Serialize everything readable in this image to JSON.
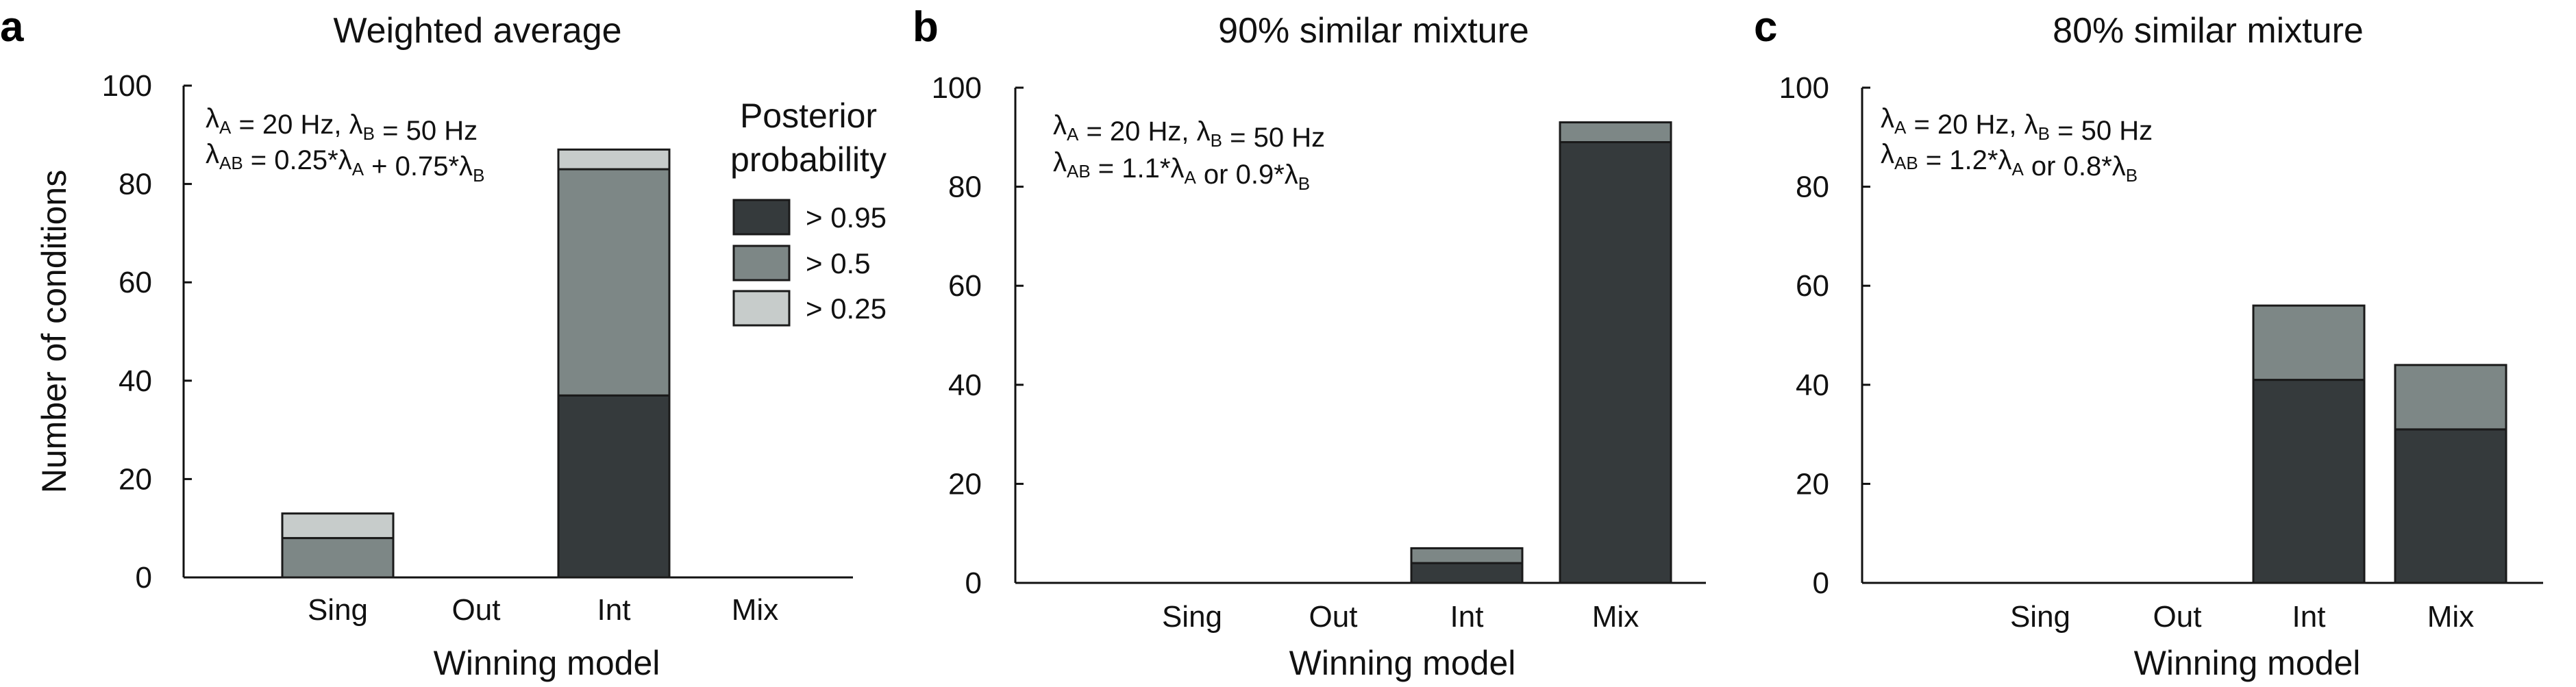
{
  "colors": {
    "p95": "#353a3c",
    "p50": "#7d8786",
    "p25": "#c7cccb",
    "axis": "#111111"
  },
  "legend": {
    "title_line1": "Posterior",
    "title_line2": "probability",
    "items": [
      {
        "label": "> 0.95",
        "color_key": "p95"
      },
      {
        "label": "> 0.5",
        "color_key": "p50"
      },
      {
        "label": "> 0.25",
        "color_key": "p25"
      }
    ]
  },
  "chart_data": [
    {
      "panel_label": "a",
      "type": "bar",
      "stacked": true,
      "title": "Weighted average",
      "xlabel": "Winning model",
      "ylabel": "Number of conditions",
      "ylim": [
        0,
        100
      ],
      "yticks": [
        "0",
        "20",
        "40",
        "60",
        "80",
        "100"
      ],
      "categories": [
        "Sing",
        "Out",
        "Int",
        "Mix"
      ],
      "series": [
        {
          "name": "> 0.95",
          "color_key": "p95",
          "values": [
            0,
            0,
            37,
            0
          ]
        },
        {
          "name": "> 0.5",
          "color_key": "p50",
          "values": [
            8,
            0,
            46,
            0
          ]
        },
        {
          "name": "> 0.25",
          "color_key": "p25",
          "values": [
            5,
            0,
            4,
            0
          ]
        }
      ],
      "annotation": {
        "line1": [
          {
            "t": "λ"
          },
          {
            "t": "A",
            "sub": true
          },
          {
            "t": " = 20 Hz, λ"
          },
          {
            "t": "B",
            "sub": true
          },
          {
            "t": " = 50 Hz"
          }
        ],
        "line2": [
          {
            "t": "λ"
          },
          {
            "t": "AB",
            "sub": true
          },
          {
            "t": " = 0.25*λ"
          },
          {
            "t": "A",
            "sub": true
          },
          {
            "t": " + 0.75*λ"
          },
          {
            "t": "B",
            "sub": true
          }
        ]
      }
    },
    {
      "panel_label": "b",
      "type": "bar",
      "stacked": true,
      "title": "90% similar mixture",
      "xlabel": "Winning model",
      "ylabel": "",
      "ylim": [
        0,
        100
      ],
      "yticks": [
        "0",
        "20",
        "40",
        "60",
        "80",
        "100"
      ],
      "categories": [
        "Sing",
        "Out",
        "Int",
        "Mix"
      ],
      "series": [
        {
          "name": "> 0.95",
          "color_key": "p95",
          "values": [
            0,
            0,
            4,
            89
          ]
        },
        {
          "name": "> 0.5",
          "color_key": "p50",
          "values": [
            0,
            0,
            3,
            4
          ]
        },
        {
          "name": "> 0.25",
          "color_key": "p25",
          "values": [
            0,
            0,
            0,
            0
          ]
        }
      ],
      "annotation": {
        "line1": [
          {
            "t": "λ"
          },
          {
            "t": "A",
            "sub": true
          },
          {
            "t": " = 20 Hz, λ"
          },
          {
            "t": "B",
            "sub": true
          },
          {
            "t": " = 50 Hz"
          }
        ],
        "line2": [
          {
            "t": "λ"
          },
          {
            "t": "AB",
            "sub": true
          },
          {
            "t": " = 1.1*λ"
          },
          {
            "t": "A",
            "sub": true
          },
          {
            "t": " or 0.9*λ"
          },
          {
            "t": "B",
            "sub": true
          }
        ]
      }
    },
    {
      "panel_label": "c",
      "type": "bar",
      "stacked": true,
      "title": "80% similar mixture",
      "xlabel": "Winning model",
      "ylabel": "",
      "ylim": [
        0,
        100
      ],
      "yticks": [
        "0",
        "20",
        "40",
        "60",
        "80",
        "100"
      ],
      "categories": [
        "Sing",
        "Out",
        "Int",
        "Mix"
      ],
      "series": [
        {
          "name": "> 0.95",
          "color_key": "p95",
          "values": [
            0,
            0,
            41,
            31
          ]
        },
        {
          "name": "> 0.5",
          "color_key": "p50",
          "values": [
            0,
            0,
            15,
            13
          ]
        },
        {
          "name": "> 0.25",
          "color_key": "p25",
          "values": [
            0,
            0,
            0,
            0
          ]
        }
      ],
      "annotation": {
        "line1": [
          {
            "t": "λ"
          },
          {
            "t": "A",
            "sub": true
          },
          {
            "t": " = 20 Hz, λ"
          },
          {
            "t": "B",
            "sub": true
          },
          {
            "t": " = 50 Hz"
          }
        ],
        "line2": [
          {
            "t": "λ"
          },
          {
            "t": "AB",
            "sub": true
          },
          {
            "t": " = 1.2*λ"
          },
          {
            "t": "A",
            "sub": true
          },
          {
            "t": " or 0.8*λ"
          },
          {
            "t": "B",
            "sub": true
          }
        ]
      }
    }
  ]
}
